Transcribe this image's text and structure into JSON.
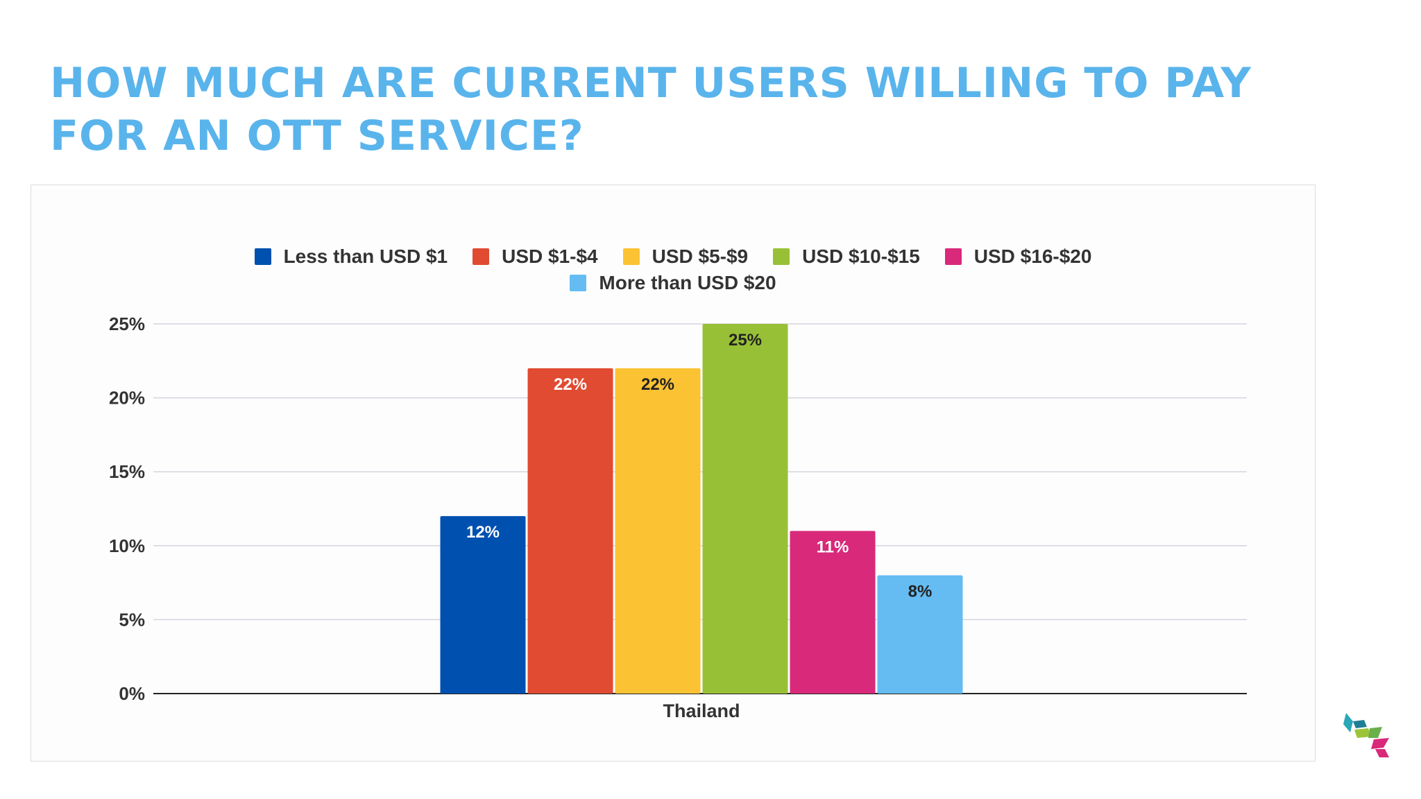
{
  "slide": {
    "title": "HOW MUCH ARE CURRENT USERS WILLING TO PAY FOR AN OTT SERVICE?",
    "title_color": "#5ab4ec",
    "logo_icon": "cube-logo-icon"
  },
  "chart_data": {
    "type": "bar",
    "categories": [
      "Thailand"
    ],
    "series": [
      {
        "name": "Less than USD $1",
        "values": [
          12
        ],
        "color": "#0050b0",
        "label": "12%",
        "label_color": "#ffffff"
      },
      {
        "name": "USD $1-$4",
        "values": [
          22
        ],
        "color": "#e04b32",
        "label": "22%",
        "label_color": "#ffffff"
      },
      {
        "name": "USD $5-$9",
        "values": [
          22
        ],
        "color": "#fbc233",
        "label": "22%",
        "label_color": "#222222"
      },
      {
        "name": "USD $10-$15",
        "values": [
          25
        ],
        "color": "#98c036",
        "label": "25%",
        "label_color": "#222222"
      },
      {
        "name": "USD $16-$20",
        "values": [
          11
        ],
        "color": "#d8297a",
        "label": "11%",
        "label_color": "#ffffff"
      },
      {
        "name": "More than USD $20",
        "values": [
          8
        ],
        "color": "#64bcf2",
        "label": "8%",
        "label_color": "#222222"
      }
    ],
    "ylim": [
      0,
      25
    ],
    "yticks": [
      0,
      5,
      10,
      15,
      20,
      25
    ],
    "ytick_labels": [
      "0%",
      "5%",
      "10%",
      "15%",
      "20%",
      "25%"
    ],
    "grid": true,
    "legend_position": "top-center"
  }
}
